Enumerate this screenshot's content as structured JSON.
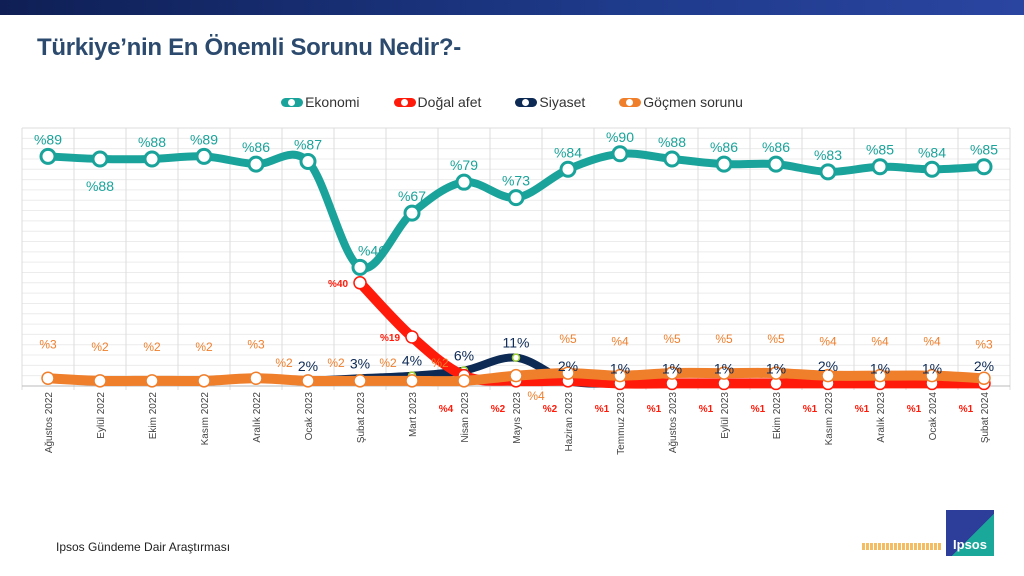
{
  "title": "Türkiye’nin En Önemli Sorunu Nedir?-",
  "footer": "Ipsos Gündeme Dair Araştırması",
  "logo_text": "Ipsos",
  "chart_data": {
    "type": "line",
    "title": "Türkiye’nin En Önemli Sorunu Nedir?-",
    "legend_position": "top",
    "ylim": [
      0,
      100
    ],
    "grid": true,
    "categories": [
      "Ağustos 2022",
      "Eylül 2022",
      "Ekim 2022",
      "Kasım 2022",
      "Aralık 2022",
      "Ocak 2023",
      "Şubat 2023",
      "Mart 2023",
      "Nisan 2023",
      "Mayıs 2023",
      "Haziran 2023",
      "Temmuz 2023",
      "Ağustos 2023",
      "Eylül 2023",
      "Ekim 2023",
      "Kasım 2023",
      "Aralık 2023",
      "Ocak 2024",
      "Şubat 2024"
    ],
    "series": [
      {
        "name": "Ekonomi",
        "color": "#1aa39a",
        "label_prefix": "%",
        "label_suffix": "",
        "values": [
          89,
          88,
          88,
          89,
          86,
          87,
          46,
          67,
          79,
          73,
          84,
          90,
          88,
          86,
          86,
          83,
          85,
          84,
          85
        ]
      },
      {
        "name": "Doğal afet",
        "color": "#ff1a0a",
        "label_prefix": "%",
        "label_suffix": "",
        "values": [
          null,
          null,
          null,
          null,
          null,
          null,
          40,
          19,
          4,
          2,
          2,
          1,
          1,
          1,
          1,
          1,
          1,
          1,
          1
        ]
      },
      {
        "name": "Siyaset",
        "color": "#0d2a55",
        "label_prefix": "",
        "label_suffix": "%",
        "values": [
          null,
          null,
          null,
          null,
          null,
          2,
          3,
          4,
          6,
          11,
          2,
          1,
          1,
          1,
          1,
          2,
          1,
          1,
          2
        ]
      },
      {
        "name": "Göçmen sorunu",
        "color": "#f07f2c",
        "label_prefix": "%",
        "label_suffix": "",
        "values": [
          3,
          2,
          2,
          2,
          3,
          2,
          2,
          2,
          2,
          4,
          5,
          4,
          5,
          5,
          5,
          4,
          4,
          4,
          3
        ]
      }
    ]
  }
}
